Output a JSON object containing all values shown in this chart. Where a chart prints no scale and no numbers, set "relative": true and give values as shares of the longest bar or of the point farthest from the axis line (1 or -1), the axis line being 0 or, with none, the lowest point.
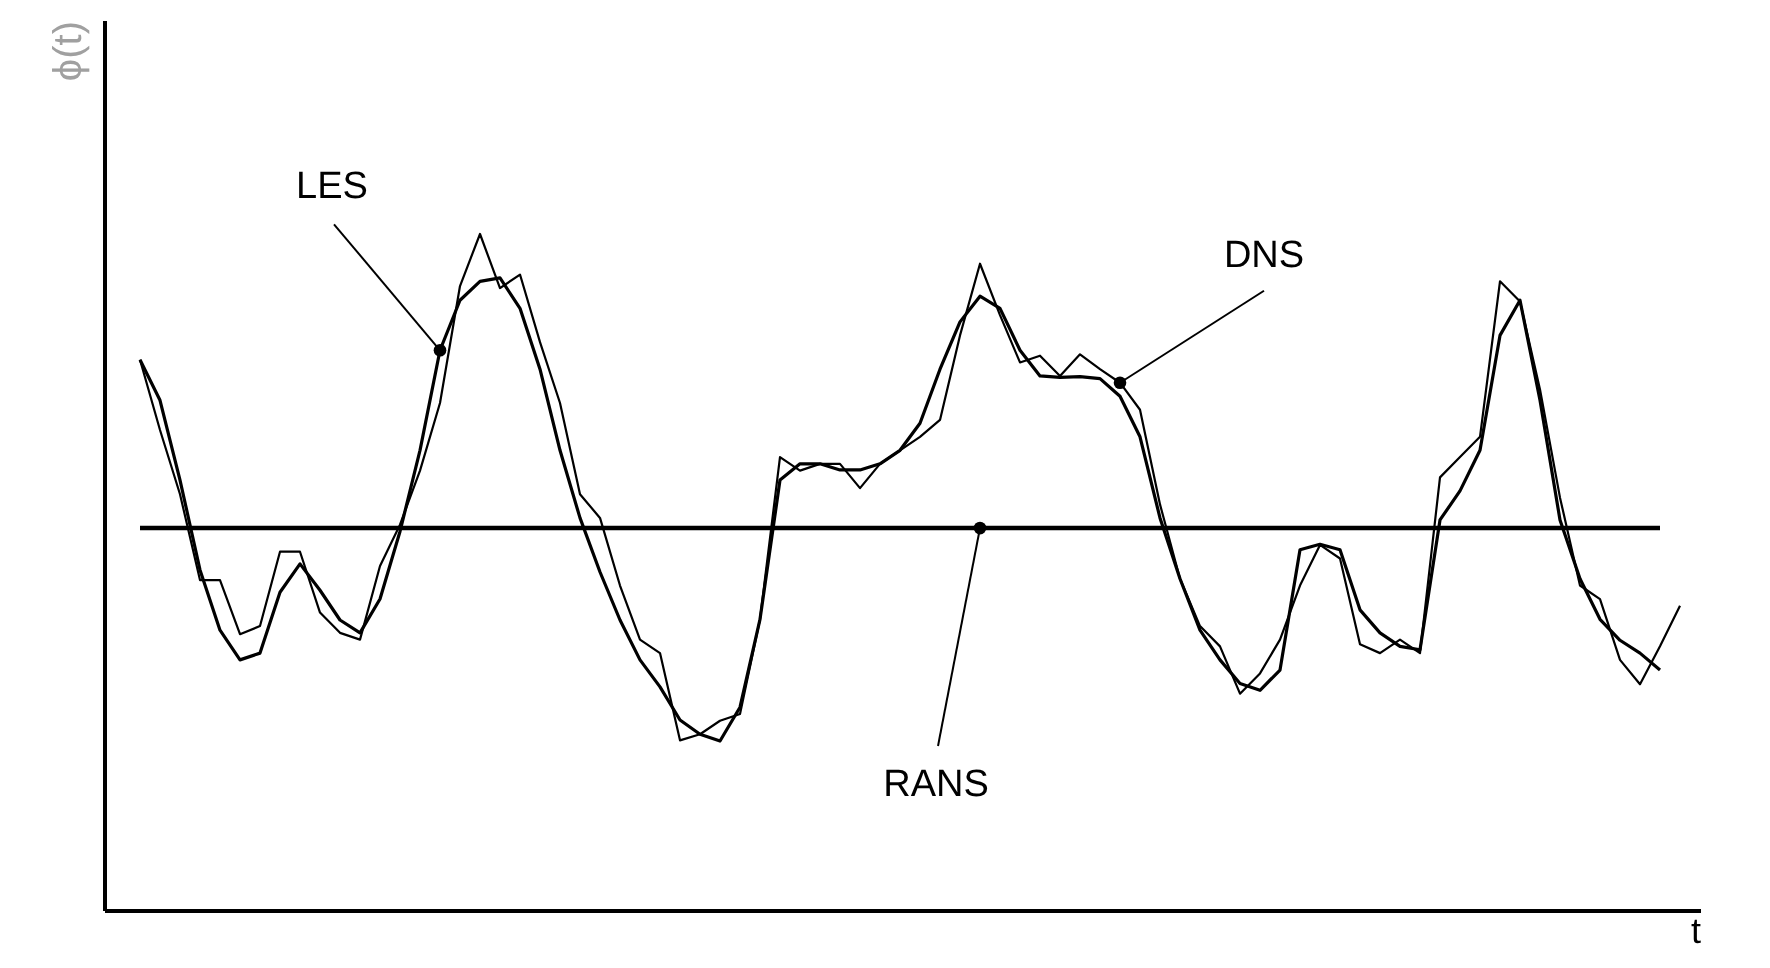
{
  "chart_data": {
    "type": "line",
    "relative": true,
    "xlabel": "t",
    "ylabel": "ϕ(t)",
    "tick_labels": false,
    "grid": false,
    "legend": false,
    "marker": "none",
    "line_style": "solid",
    "categories": [
      null,
      null,
      null,
      null,
      null,
      null,
      null,
      null,
      null,
      null,
      null,
      null,
      null,
      null,
      null,
      null,
      null,
      null,
      null,
      null,
      null,
      null,
      null,
      null,
      null,
      null,
      null,
      null,
      null,
      null,
      null,
      null,
      null,
      null,
      null,
      null,
      null,
      null,
      null,
      null,
      null,
      null,
      null,
      null,
      null,
      null,
      null,
      null,
      null,
      null,
      null,
      null,
      null,
      null,
      null,
      null,
      null,
      null,
      null,
      null,
      null,
      null,
      null,
      null,
      null,
      null,
      null,
      null,
      null,
      null,
      null,
      null,
      null,
      null,
      null,
      null,
      null,
      null
    ],
    "series": [
      {
        "name": "LES",
        "color": "#000000",
        "values": [
          0.814,
          0.754,
          0.636,
          0.503,
          0.414,
          0.37,
          0.38,
          0.47,
          0.512,
          0.473,
          0.429,
          0.41,
          0.46,
          0.56,
          0.68,
          0.828,
          0.902,
          0.93,
          0.935,
          0.89,
          0.8,
          0.68,
          0.58,
          0.5,
          0.429,
          0.37,
          0.33,
          0.281,
          0.26,
          0.25,
          0.3,
          0.43,
          0.636,
          0.66,
          0.66,
          0.651,
          0.651,
          0.66,
          0.68,
          0.72,
          0.8,
          0.87,
          0.908,
          0.89,
          0.828,
          0.79,
          0.788,
          0.789,
          0.786,
          0.76,
          0.7,
          0.58,
          0.49,
          0.414,
          0.37,
          0.335,
          0.325,
          0.355,
          0.533,
          0.541,
          0.533,
          0.444,
          0.41,
          0.39,
          0.385,
          0.577,
          0.62,
          0.68,
          0.85,
          0.902,
          0.754,
          0.577,
          0.49,
          0.43,
          0.399,
          0.38,
          0.355,
          null
        ]
      },
      {
        "name": "DNS",
        "color": "#000000",
        "values": [
          0.814,
          0.71,
          0.615,
          0.488,
          0.488,
          0.408,
          0.42,
          0.53,
          0.53,
          0.44,
          0.41,
          0.4,
          0.509,
          0.57,
          0.65,
          0.75,
          0.923,
          1,
          0.92,
          0.94,
          0.84,
          0.75,
          0.615,
          0.58,
          0.48,
          0.4,
          0.38,
          0.251,
          0.26,
          0.28,
          0.29,
          0.43,
          0.67,
          0.65,
          0.66,
          0.66,
          0.624,
          0.66,
          0.68,
          0.7,
          0.725,
          0.85,
          0.956,
          0.88,
          0.81,
          0.82,
          0.79,
          0.822,
          0.8,
          0.78,
          0.74,
          0.6,
          0.49,
          0.42,
          0.39,
          0.32,
          0.35,
          0.4,
          0.48,
          0.54,
          0.52,
          0.393,
          0.38,
          0.4,
          0.38,
          0.64,
          0.67,
          0.7,
          0.93,
          0.9,
          0.77,
          0.61,
          0.48,
          0.46,
          0.37,
          0.334,
          0.39,
          0.45
        ]
      },
      {
        "name": "RANS",
        "color": "#000000",
        "values": [
          0.565,
          0.565,
          0.565,
          0.565,
          0.565,
          0.565,
          0.565,
          0.565,
          0.565,
          0.565,
          0.565,
          0.565,
          0.565,
          0.565,
          0.565,
          0.565,
          0.565,
          0.565,
          0.565,
          0.565,
          0.565,
          0.565,
          0.565,
          0.565,
          0.565,
          0.565,
          0.565,
          0.565,
          0.565,
          0.565,
          0.565,
          0.565,
          0.565,
          0.565,
          0.565,
          0.565,
          0.565,
          0.565,
          0.565,
          0.565,
          0.565,
          0.565,
          0.565,
          0.565,
          0.565,
          0.565,
          0.565,
          0.565,
          0.565,
          0.565,
          0.565,
          0.565,
          0.565,
          0.565,
          0.565,
          0.565,
          0.565,
          0.565,
          0.565,
          0.565,
          0.565,
          0.565,
          0.565,
          0.565,
          0.565,
          0.565,
          0.565,
          0.565,
          0.565,
          0.565,
          0.565,
          0.565,
          0.565,
          0.565,
          0.565,
          0.565,
          0.565,
          null
        ]
      }
    ]
  }
}
